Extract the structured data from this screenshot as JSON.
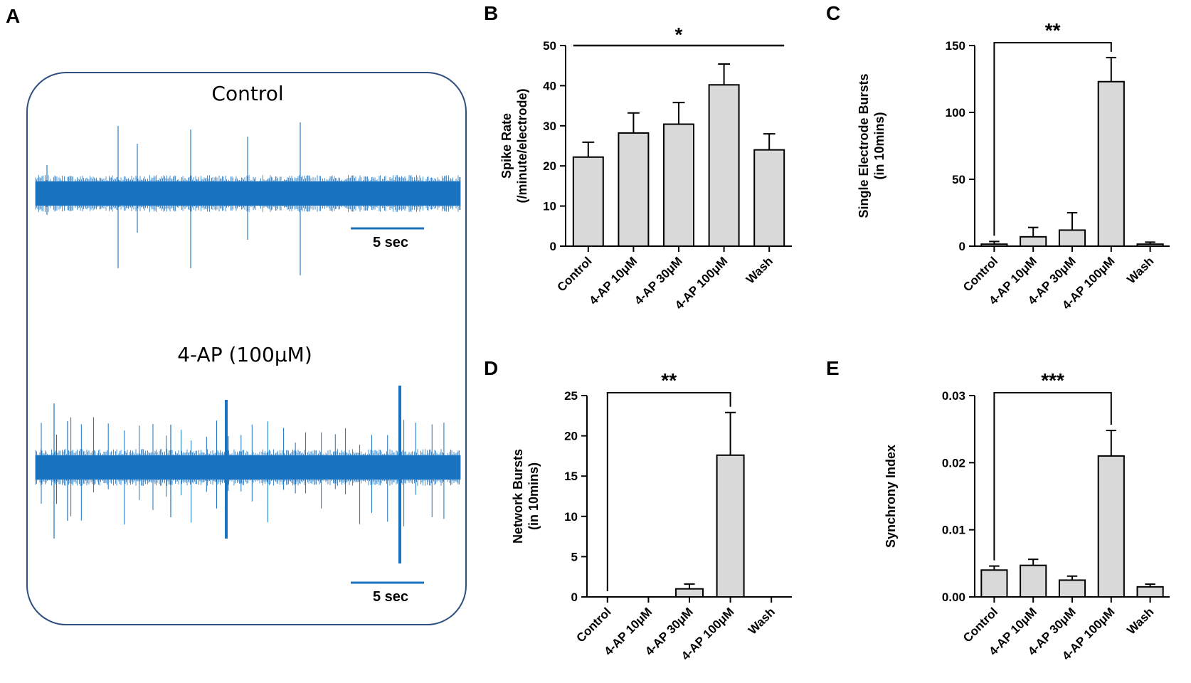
{
  "colors": {
    "trace": "#1a73c0",
    "bar_fill": "#d9d9d9",
    "frame": "#2f4f7f",
    "ink": "#000000"
  },
  "panel_a": {
    "letter": "A",
    "control_label": "Control",
    "treated_label": "4-AP (100μM)",
    "scale_bar_label": "5 sec"
  },
  "chart_data": [
    {
      "panel": "B",
      "type": "bar",
      "categories": [
        "Control",
        "4-AP 10μM",
        "4-AP 30μM",
        "4-AP 100μM",
        "Wash"
      ],
      "values": [
        22.2,
        28.2,
        30.4,
        40.2,
        24.0
      ],
      "errors": [
        3.7,
        5.0,
        5.4,
        5.2,
        4.0
      ],
      "ylabel": [
        "Spike Rate",
        "(/minute/electrode)"
      ],
      "ylim": [
        0,
        50
      ],
      "yticks": [
        0,
        10,
        20,
        30,
        40,
        50
      ],
      "ytick_labels": [
        "0",
        "10",
        "20",
        "30",
        "40",
        "50"
      ],
      "significance": {
        "label": "*",
        "from": 0,
        "to": 4,
        "style": "line"
      }
    },
    {
      "panel": "C",
      "type": "bar",
      "categories": [
        "Control",
        "4-AP 10μM",
        "4-AP 30μM",
        "4-AP 100μM",
        "Wash"
      ],
      "values": [
        1.5,
        7.0,
        12.0,
        123.0,
        1.5
      ],
      "errors": [
        2.0,
        7.0,
        13.0,
        18.0,
        1.5
      ],
      "ylabel": [
        "Single Electrode Bursts",
        "(in 10mins)"
      ],
      "ylim": [
        0,
        150
      ],
      "yticks": [
        0,
        50,
        100,
        150
      ],
      "ytick_labels": [
        "0",
        "50",
        "100",
        "150"
      ],
      "significance": {
        "label": "**",
        "from": 0,
        "to": 3,
        "style": "bracket"
      }
    },
    {
      "panel": "D",
      "type": "bar",
      "categories": [
        "Control",
        "4-AP 10μM",
        "4-AP 30μM",
        "4-AP 100μM",
        "Wash"
      ],
      "values": [
        0,
        0,
        1.0,
        17.6,
        0
      ],
      "errors": [
        0,
        0,
        0.6,
        5.3,
        0
      ],
      "ylabel": [
        "Network Bursts",
        "(in 10mins)"
      ],
      "ylim": [
        0,
        25
      ],
      "yticks": [
        0,
        5,
        10,
        15,
        20,
        25
      ],
      "ytick_labels": [
        "0",
        "5",
        "10",
        "15",
        "20",
        "25"
      ],
      "significance": {
        "label": "**",
        "from": 0,
        "to": 3,
        "style": "bracket"
      }
    },
    {
      "panel": "E",
      "type": "bar",
      "categories": [
        "Control",
        "4-AP 10μM",
        "4-AP 30μM",
        "4-AP 100μM",
        "Wash"
      ],
      "values": [
        0.004,
        0.0047,
        0.0025,
        0.021,
        0.0015
      ],
      "errors": [
        0.0006,
        0.0009,
        0.0006,
        0.0038,
        0.0004
      ],
      "ylabel": [
        "Synchrony Index"
      ],
      "ylim": [
        0,
        0.03
      ],
      "yticks": [
        0,
        0.01,
        0.02,
        0.03
      ],
      "ytick_labels": [
        "0.00",
        "0.01",
        "0.02",
        "0.03"
      ],
      "significance": {
        "label": "***",
        "from": 0,
        "to": 3,
        "style": "bracket"
      }
    }
  ]
}
